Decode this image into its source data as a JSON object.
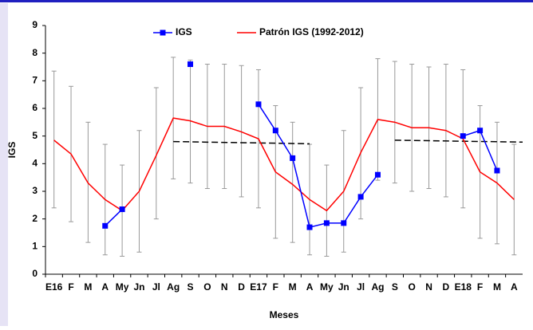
{
  "chart_data": {
    "type": "line",
    "x_label": "Meses",
    "y_label": "IGS",
    "categories": [
      "E16",
      "F",
      "M",
      "A",
      "My",
      "Jn",
      "Jl",
      "Ag",
      "S",
      "O",
      "N",
      "D",
      "E17",
      "F",
      "M",
      "A",
      "My",
      "Jn",
      "Jl",
      "Ag",
      "S",
      "O",
      "N",
      "D",
      "E18",
      "F",
      "M",
      "A"
    ],
    "ylim": [
      0,
      9
    ],
    "yticks": [
      0,
      1,
      2,
      3,
      4,
      5,
      6,
      7,
      8,
      9
    ],
    "series": [
      {
        "name": "IGS",
        "color": "#0000ff",
        "marker": "square",
        "values": [
          null,
          null,
          null,
          1.75,
          2.35,
          null,
          null,
          null,
          7.6,
          null,
          null,
          null,
          6.15,
          5.2,
          4.2,
          1.7,
          1.85,
          1.85,
          2.8,
          3.6,
          null,
          null,
          null,
          null,
          5.0,
          5.2,
          3.75,
          null
        ]
      },
      {
        "name": "Patrón IGS (1992-2012)",
        "color": "#ff0000",
        "error_color": "#999999",
        "values": [
          4.85,
          4.35,
          3.3,
          2.7,
          2.3,
          3.0,
          4.3,
          5.65,
          5.55,
          5.35,
          5.35,
          5.15,
          4.9,
          3.7,
          3.25,
          2.7,
          2.3,
          3.0,
          4.4,
          5.6,
          5.5,
          5.3,
          5.3,
          5.2,
          4.9,
          3.7,
          3.3,
          2.7
        ],
        "upper": [
          7.35,
          6.8,
          5.5,
          4.7,
          3.95,
          5.2,
          6.75,
          7.85,
          7.75,
          7.6,
          7.6,
          7.55,
          7.4,
          6.1,
          5.5,
          4.7,
          3.95,
          5.2,
          6.75,
          7.8,
          7.7,
          7.6,
          7.5,
          7.6,
          7.4,
          6.1,
          5.5,
          4.7
        ],
        "lower": [
          2.4,
          1.9,
          1.15,
          0.7,
          0.65,
          0.8,
          2.0,
          3.45,
          3.3,
          3.1,
          3.1,
          2.8,
          2.4,
          1.3,
          1.15,
          0.7,
          0.65,
          0.8,
          2.0,
          3.4,
          3.3,
          3.0,
          3.1,
          2.8,
          2.4,
          1.3,
          1.1,
          0.7
        ]
      }
    ],
    "trend_lines": [
      {
        "x": [
          7,
          15
        ],
        "values": [
          4.8,
          4.72
        ],
        "color": "#000000"
      },
      {
        "x": [
          20,
          27.5
        ],
        "values": [
          4.85,
          4.78
        ],
        "color": "#000000"
      }
    ]
  }
}
